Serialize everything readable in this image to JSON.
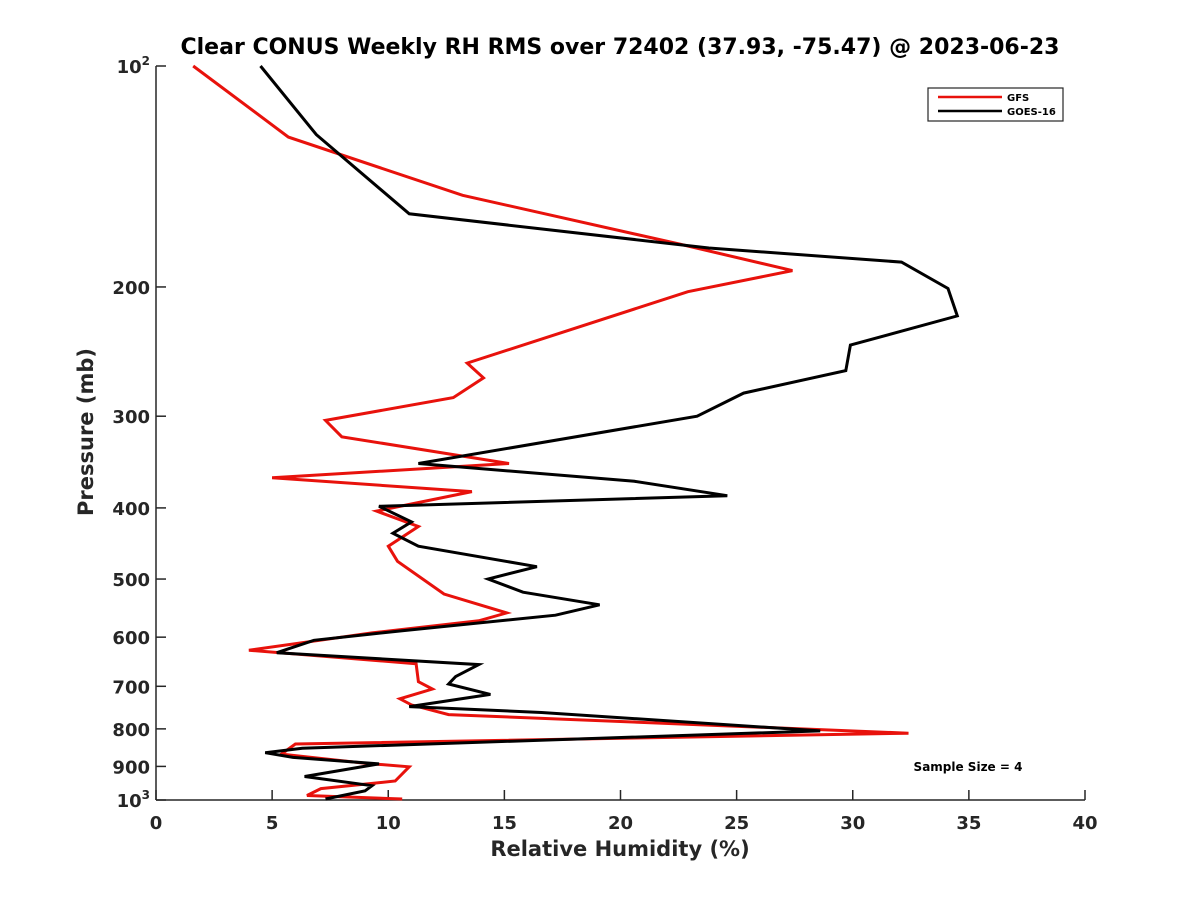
{
  "chart_data": {
    "type": "line",
    "title": "Clear CONUS Weekly RH RMS over 72402 (37.93, -75.47) @ 2023-06-23",
    "xlabel": "Relative Humidity (%)",
    "ylabel": "Pressure (mb)",
    "xlim": [
      0,
      40
    ],
    "ylim": [
      100,
      1000
    ],
    "yscale": "log",
    "y_direction": "reversed",
    "x_ticks": [
      0,
      5,
      10,
      15,
      20,
      25,
      30,
      35,
      40
    ],
    "x_tick_labels": [
      "0",
      "5",
      "10",
      "15",
      "20",
      "25",
      "30",
      "35",
      "40"
    ],
    "y_ticks": [
      {
        "value": 100,
        "base": "10",
        "exp": "2"
      },
      {
        "value": 200,
        "label": "200"
      },
      {
        "value": 300,
        "label": "300"
      },
      {
        "value": 400,
        "label": "400"
      },
      {
        "value": 500,
        "label": "500"
      },
      {
        "value": 600,
        "label": "600"
      },
      {
        "value": 700,
        "label": "700"
      },
      {
        "value": 800,
        "label": "800"
      },
      {
        "value": 900,
        "label": "900"
      },
      {
        "value": 1000,
        "base": "10",
        "exp": "3"
      }
    ],
    "legend_position": "top-right",
    "series": [
      {
        "name": "GFS",
        "color": "#e8120c",
        "points": [
          [
            1.6,
            100
          ],
          [
            5.7,
            125
          ],
          [
            13.2,
            150
          ],
          [
            22.6,
            175
          ],
          [
            27.4,
            190
          ],
          [
            22.9,
            203
          ],
          [
            13.4,
            254
          ],
          [
            14.1,
            266
          ],
          [
            12.8,
            283
          ],
          [
            7.3,
            304
          ],
          [
            8.0,
            320
          ],
          [
            15.2,
            348
          ],
          [
            5.0,
            364
          ],
          [
            13.6,
            380
          ],
          [
            9.5,
            404
          ],
          [
            11.3,
            424
          ],
          [
            10.0,
            451
          ],
          [
            10.4,
            473
          ],
          [
            12.4,
            524
          ],
          [
            15.1,
            556
          ],
          [
            13.9,
            570
          ],
          [
            9.3,
            592
          ],
          [
            4.0,
            625
          ],
          [
            11.2,
            652
          ],
          [
            11.3,
            690
          ],
          [
            11.9,
            706
          ],
          [
            10.5,
            728
          ],
          [
            11.0,
            742
          ],
          [
            12.6,
            765
          ],
          [
            32.4,
            811
          ],
          [
            6.0,
            839
          ],
          [
            5.4,
            866
          ],
          [
            9.0,
            891
          ],
          [
            10.9,
            901
          ],
          [
            10.3,
            942
          ],
          [
            7.1,
            965
          ],
          [
            6.5,
            986
          ],
          [
            10.6,
            997
          ]
        ]
      },
      {
        "name": "GOES-16",
        "color": "#000000",
        "points": [
          [
            4.5,
            100
          ],
          [
            6.9,
            124
          ],
          [
            10.9,
            159
          ],
          [
            23.8,
            177
          ],
          [
            32.1,
            185
          ],
          [
            34.1,
            201
          ],
          [
            34.5,
            219
          ],
          [
            29.9,
            240
          ],
          [
            29.7,
            260
          ],
          [
            25.3,
            279
          ],
          [
            23.3,
            300
          ],
          [
            11.3,
            348
          ],
          [
            20.6,
            368
          ],
          [
            24.6,
            385
          ],
          [
            9.6,
            398
          ],
          [
            11.0,
            418
          ],
          [
            10.2,
            433
          ],
          [
            11.3,
            451
          ],
          [
            16.4,
            481
          ],
          [
            14.3,
            500
          ],
          [
            15.8,
            521
          ],
          [
            19.1,
            542
          ],
          [
            17.2,
            560
          ],
          [
            10.6,
            588
          ],
          [
            6.8,
            606
          ],
          [
            5.2,
            630
          ],
          [
            13.9,
            654
          ],
          [
            12.9,
            679
          ],
          [
            12.6,
            695
          ],
          [
            14.4,
            718
          ],
          [
            10.9,
            746
          ],
          [
            16.6,
            760
          ],
          [
            28.6,
            805
          ],
          [
            6.3,
            850
          ],
          [
            4.7,
            862
          ],
          [
            5.9,
            875
          ],
          [
            9.6,
            893
          ],
          [
            6.4,
            929
          ],
          [
            9.3,
            956
          ],
          [
            9.0,
            972
          ],
          [
            7.3,
            997
          ]
        ]
      }
    ],
    "annotation": "Sample Size = 4"
  }
}
